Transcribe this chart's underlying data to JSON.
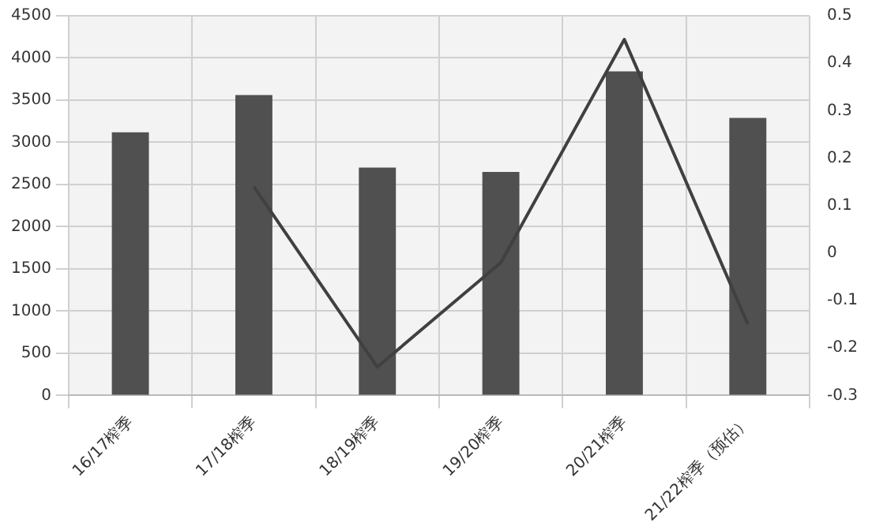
{
  "chart_data": {
    "type": "bar",
    "categories": [
      "16/17榨季",
      "17/18榨季",
      "18/19榨季",
      "19/20榨季",
      "20/21榨季",
      "21/22榨季（预估）"
    ],
    "series": [
      {
        "color": "#505050",
        "values": [
          3120,
          3560,
          2700,
          2650,
          3840,
          3290
        ]
      },
      {
        "type": "line",
        "axis": "y2",
        "color": "#404040",
        "values": [
          null,
          0.14,
          -0.24,
          -0.02,
          0.45,
          -0.15
        ]
      }
    ],
    "ylim": [
      0,
      4500
    ],
    "yticks": [
      0,
      500,
      1000,
      1500,
      2000,
      2500,
      3000,
      3500,
      4000,
      4500
    ],
    "y2lim": [
      -0.3,
      0.5
    ],
    "y2ticks": [
      -0.3,
      -0.2,
      -0.1,
      0,
      0.1,
      0.2,
      0.3,
      0.4,
      0.5
    ],
    "grid": true,
    "legend": false,
    "marker": "none"
  }
}
